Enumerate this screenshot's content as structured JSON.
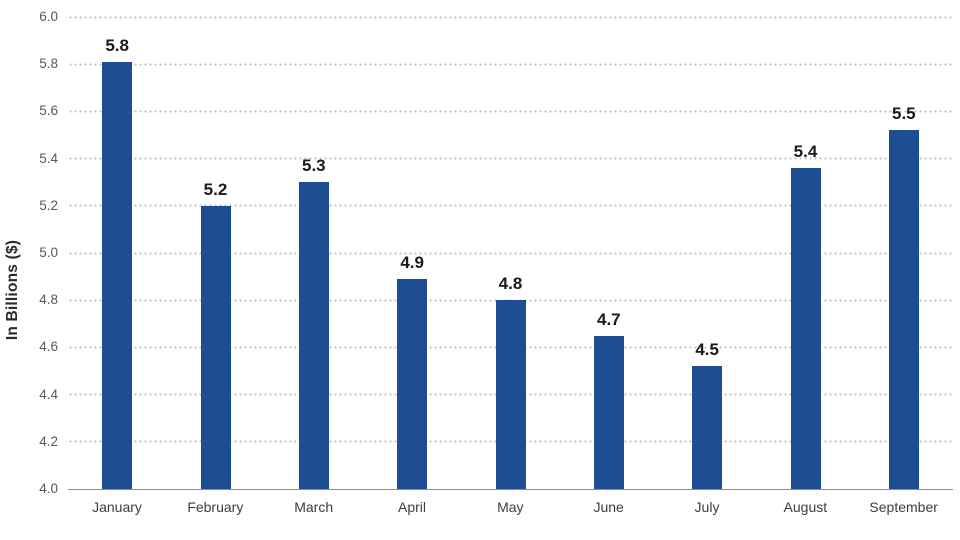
{
  "chart_data": {
    "type": "bar",
    "title": "",
    "xlabel": "",
    "ylabel": "In Billions ($)",
    "categories": [
      "January",
      "February",
      "March",
      "April",
      "May",
      "June",
      "July",
      "August",
      "September"
    ],
    "values": [
      5.8,
      5.2,
      5.3,
      4.9,
      4.8,
      4.7,
      4.5,
      5.4,
      5.5
    ],
    "bar_labels": [
      "5.8",
      "5.2",
      "5.3",
      "4.9",
      "4.8",
      "4.7",
      "4.5",
      "5.4",
      "5.5"
    ],
    "plotted_values": [
      5.81,
      5.2,
      5.3,
      4.89,
      4.8,
      4.65,
      4.52,
      5.36,
      5.52
    ],
    "ylim": [
      4.0,
      6.0
    ],
    "ytick_step": 0.2,
    "ytick_labels": [
      "4.0",
      "4.2",
      "4.4",
      "4.6",
      "4.8",
      "5.0",
      "5.2",
      "5.4",
      "5.6",
      "5.8",
      "6.0"
    ],
    "grid": "horizontal-dotted",
    "legend": "none",
    "colors": {
      "bar": "#1E4D94",
      "data_label": "#1a1a1a",
      "tick_label": "#595959",
      "category_label": "#3d3d3d",
      "gridline": "#bdbdbd",
      "axis_line": "#8f8f8f",
      "background": "#ffffff"
    }
  }
}
